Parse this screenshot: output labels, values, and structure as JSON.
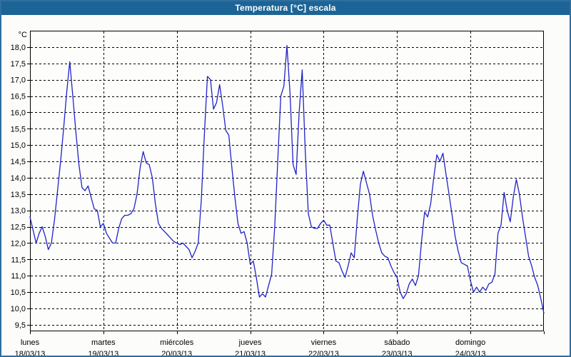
{
  "window": {
    "title": "Temperatura [°C] escala"
  },
  "colors": {
    "titlebar_bg": "#1d6496",
    "titlebar_text": "#ffffff",
    "outer_border": "#2e6f9f",
    "plot_bg": "#fdfefc",
    "grid_line": "#000000",
    "axis_line": "#000000",
    "series_line": "#2121c8",
    "label_text": "#000000"
  },
  "chart_data": {
    "type": "line",
    "title": "Temperatura [°C] escala",
    "ylabel": "°C",
    "grid": "dashed",
    "legend": "none",
    "y_axis": {
      "min": 9.3,
      "max": 18.5,
      "tick_values": [
        18.0,
        17.5,
        17.0,
        16.5,
        16.0,
        15.5,
        15.0,
        14.5,
        14.0,
        13.5,
        13.0,
        12.5,
        12.0,
        11.5,
        11.0,
        10.5,
        10.0,
        9.5
      ],
      "tick_labels": [
        "18,0",
        "17,5",
        "17,0",
        "16,5",
        "16,0",
        "15,5",
        "15,0",
        "14,5",
        "14,0",
        "13,5",
        "13,0",
        "12,5",
        "12,0",
        "11,5",
        "11,0",
        "10,5",
        "10,0",
        "9,5"
      ]
    },
    "x_axis": {
      "unit": "hours",
      "points_per_day": 24,
      "day_tick_labels_line1": [
        "lunes",
        "martes",
        "miércoles",
        "jueves",
        "viernes",
        "sábado",
        "domingo"
      ],
      "day_tick_labels_line2": [
        "18/03/13",
        "19/03/13",
        "20/03/13",
        "21/03/13",
        "22/03/13",
        "23/03/13",
        "24/03/13"
      ]
    },
    "series": [
      {
        "name": "Temperatura",
        "color": "#2121c8",
        "days": [
          {
            "weekday": "lunes",
            "date": "18/03/13",
            "values": [
              12.8,
              12.4,
              12.0,
              12.3,
              12.5,
              12.2,
              11.8,
              12.0,
              12.7,
              13.6,
              14.5,
              15.5,
              16.6,
              17.55,
              16.5,
              15.4,
              14.4,
              13.7,
              13.6,
              13.75,
              13.4,
              13.05,
              13.0,
              12.5
            ]
          },
          {
            "weekday": "martes",
            "date": "19/03/13",
            "values": [
              12.6,
              12.3,
              12.15,
              12.0,
              12.0,
              12.45,
              12.75,
              12.85,
              12.85,
              12.9,
              13.05,
              13.5,
              14.3,
              14.8,
              14.45,
              14.4,
              14.0,
              13.2,
              12.6,
              12.45,
              12.35,
              12.25,
              12.15,
              12.05
            ]
          },
          {
            "weekday": "miércoles",
            "date": "20/03/13",
            "values": [
              12.0,
              11.95,
              12.0,
              11.9,
              11.8,
              11.55,
              11.75,
              12.0,
              13.3,
              15.3,
              17.1,
              17.0,
              16.1,
              16.3,
              16.85,
              16.2,
              15.45,
              15.3,
              14.3,
              13.4,
              12.6,
              12.3,
              12.35,
              12.0
            ]
          },
          {
            "weekday": "jueves",
            "date": "21/03/13",
            "values": [
              11.35,
              11.45,
              10.95,
              10.35,
              10.45,
              10.35,
              10.7,
              11.05,
              12.5,
              14.5,
              16.5,
              16.8,
              18.05,
              16.6,
              14.4,
              14.1,
              16.0,
              17.3,
              14.8,
              12.9,
              12.5,
              12.45,
              12.45,
              12.6
            ]
          },
          {
            "weekday": "viernes",
            "date": "22/03/13",
            "values": [
              12.7,
              12.55,
              12.55,
              12.0,
              11.45,
              11.4,
              11.15,
              10.95,
              11.3,
              11.7,
              11.55,
              12.75,
              13.8,
              14.2,
              13.85,
              13.5,
              12.85,
              12.4,
              12.0,
              11.7,
              11.6,
              11.55,
              11.3,
              11.1
            ]
          },
          {
            "weekday": "sábado",
            "date": "23/03/13",
            "values": [
              10.95,
              10.5,
              10.3,
              10.45,
              10.75,
              10.9,
              10.7,
              11.0,
              12.05,
              12.95,
              12.8,
              13.2,
              14.0,
              14.7,
              14.5,
              14.75,
              14.1,
              13.5,
              12.85,
              12.2,
              11.75,
              11.4,
              11.35,
              11.3
            ]
          },
          {
            "weekday": "domingo",
            "date": "24/03/13",
            "values": [
              10.85,
              10.5,
              10.65,
              10.5,
              10.65,
              10.55,
              10.75,
              10.8,
              11.05,
              12.3,
              12.55,
              13.55,
              13.0,
              12.65,
              13.4,
              13.95,
              13.5,
              12.8,
              12.2,
              11.6,
              11.3,
              10.95,
              10.7,
              10.3
            ]
          }
        ],
        "final_value": 9.85
      }
    ]
  }
}
